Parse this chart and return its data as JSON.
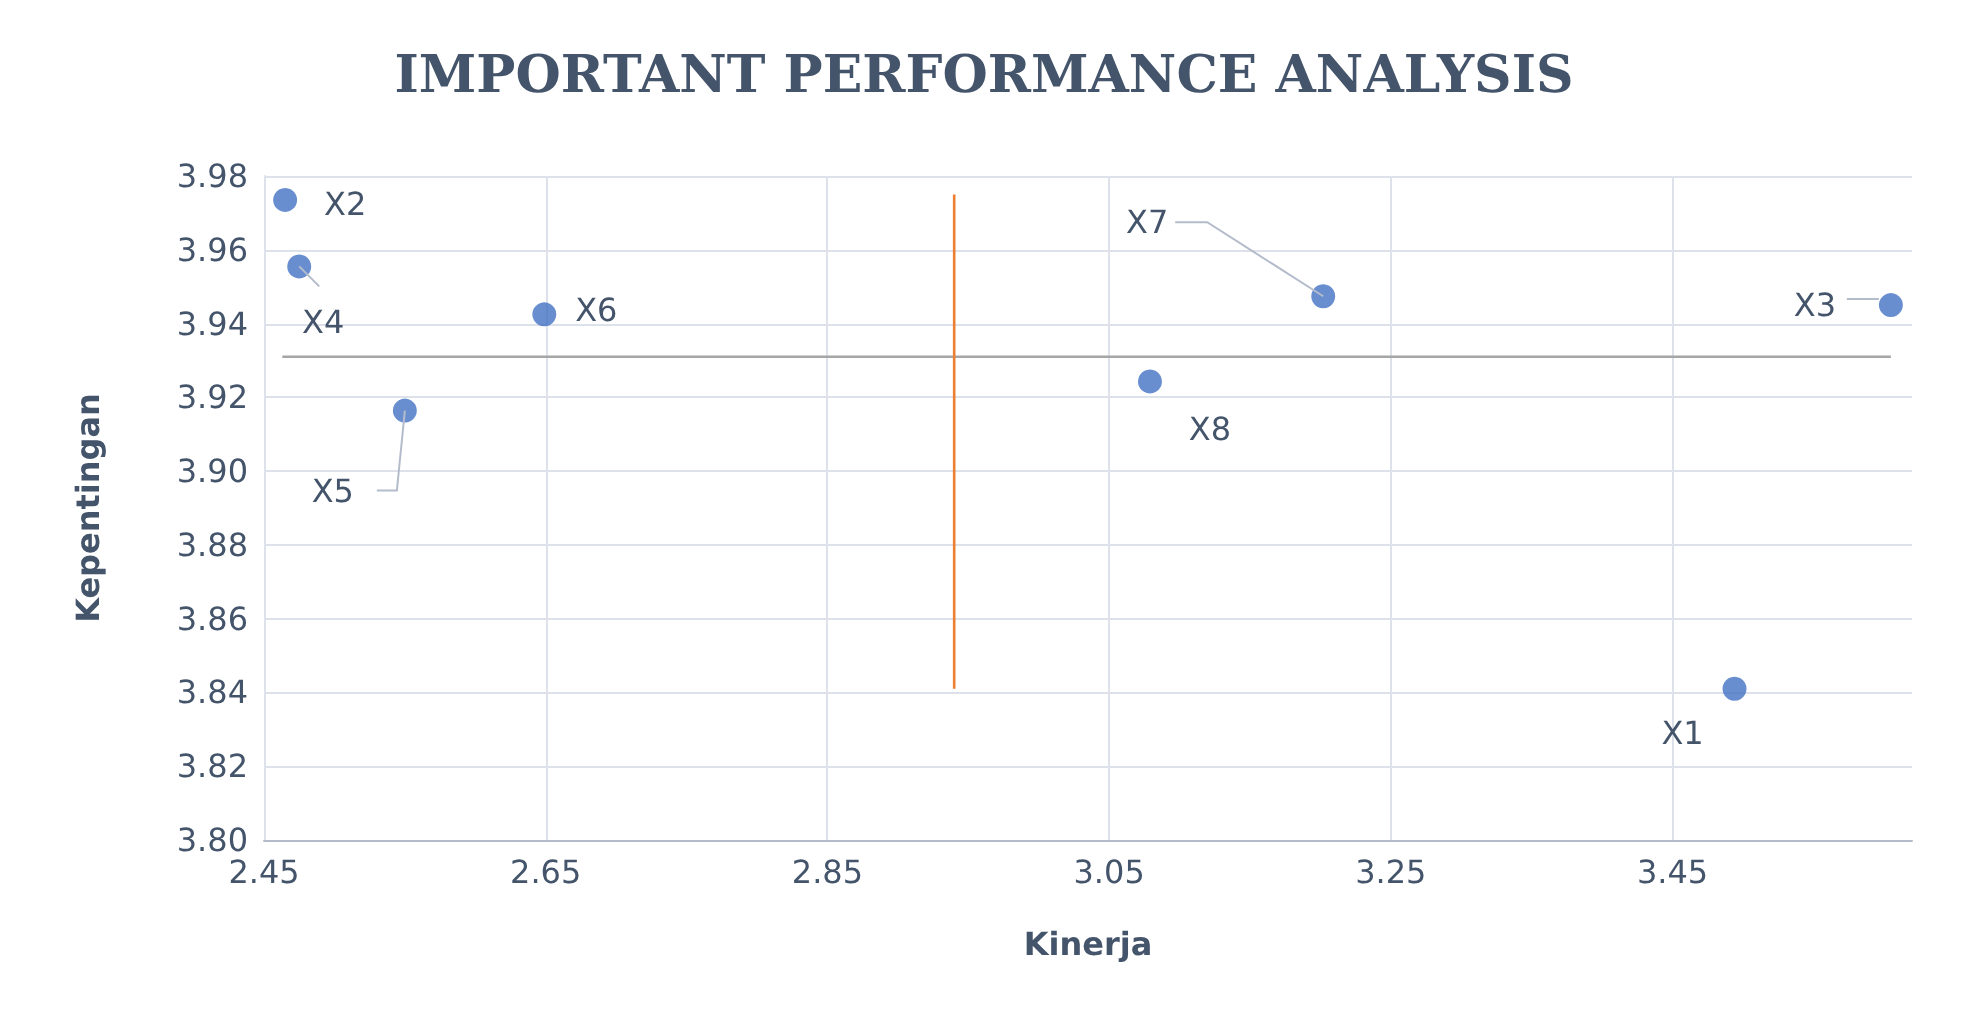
{
  "chart_data": {
    "type": "scatter",
    "title": "IMPORTANT PERFORMANCE ANALYSIS",
    "xlabel": "Kinerja",
    "ylabel": "Kepentingan",
    "xlim": [
      2.45,
      3.62
    ],
    "xticks": [
      2.45,
      2.65,
      2.85,
      3.05,
      3.25,
      3.45
    ],
    "ylim": [
      3.8,
      3.98
    ],
    "yticks": [
      {
        "value": 3.8,
        "label": "3.80"
      },
      3.82,
      3.84,
      3.86,
      3.88,
      {
        "value": 3.9,
        "label": "3.90"
      },
      3.92,
      3.94,
      3.96,
      3.98
    ],
    "grid": true,
    "marker": "circle",
    "series": [
      {
        "color": "#4472c4",
        "x": [
          3.494,
          2.465,
          3.605,
          2.475,
          2.55,
          2.649,
          3.202,
          3.079
        ],
        "values": [
          3.841,
          3.9735,
          3.945,
          3.9555,
          3.9164,
          3.9425,
          3.9474,
          3.9243
        ]
      },
      {
        "type": "line",
        "color": "#a6a6a6",
        "marker": "none",
        "x": [
          2.463,
          3.605
        ],
        "values": [
          3.931,
          3.931
        ]
      },
      {
        "type": "line",
        "color": "#ed7d31",
        "marker": "none",
        "x": [
          2.94,
          2.94
        ],
        "values": [
          3.975,
          3.841
        ]
      }
    ],
    "annotations": [
      {
        "text": "X1",
        "x": 3.494,
        "y": 3.841
      },
      {
        "text": "X2",
        "x": 2.465,
        "y": 3.9735
      },
      {
        "text": "X3",
        "x": 3.605,
        "y": 3.945
      },
      {
        "text": "X4",
        "x": 2.475,
        "y": 3.9555
      },
      {
        "text": "X5",
        "x": 2.55,
        "y": 3.9164
      },
      {
        "text": "X6",
        "x": 2.649,
        "y": 3.9425
      },
      {
        "text": "X7",
        "x": 3.202,
        "y": 3.9474
      },
      {
        "text": "X8",
        "x": 3.079,
        "y": 3.9243
      }
    ]
  }
}
